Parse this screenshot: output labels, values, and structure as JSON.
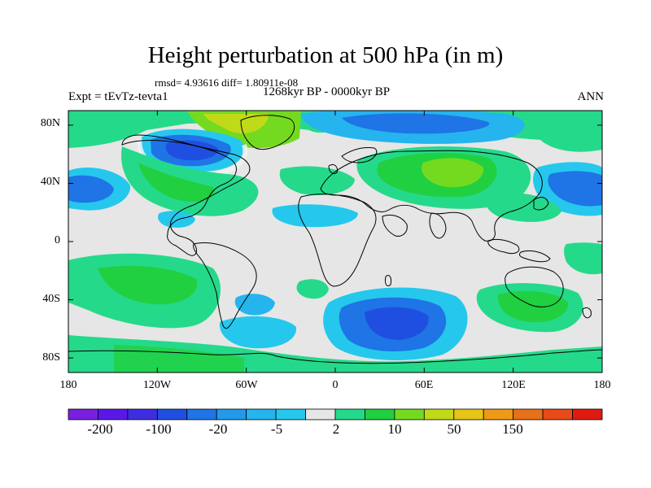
{
  "title": "Height perturbation at 500 hPa (in m)",
  "stats": "rmsd= 4.93616 diff= 1.80911e-08",
  "experiment": "Expt = tEvTz-tevta1",
  "period": "1268kyr BP - 0000kyr BP",
  "season": "ANN",
  "lat_labels": [
    "80N",
    "40N",
    "0",
    "40S",
    "80S"
  ],
  "lon_labels": [
    "180",
    "120W",
    "60W",
    "0",
    "60E",
    "120E",
    "180"
  ],
  "colorbar": {
    "labels": [
      "-200",
      "-100",
      "-20",
      "-5",
      "2",
      "10",
      "50",
      "150"
    ],
    "colors": [
      "#7a1fe0",
      "#5a18e8",
      "#3e2de0",
      "#1f4fe0",
      "#1f74e6",
      "#2399ea",
      "#25b4ee",
      "#25c8ec",
      "#e6e6e6",
      "#25d98a",
      "#20d040",
      "#74da20",
      "#c0da18",
      "#e6c418",
      "#ee9a18",
      "#e87018",
      "#e84a18",
      "#e01a10"
    ]
  },
  "palette": {
    "neutral": "#e6e6e6",
    "blue": "#1f74e6",
    "dark_blue": "#1f4fe0",
    "cyan": "#25b4ee",
    "green_teal": "#25d98a",
    "green": "#20d040",
    "yellow_green": "#c0da18"
  }
}
